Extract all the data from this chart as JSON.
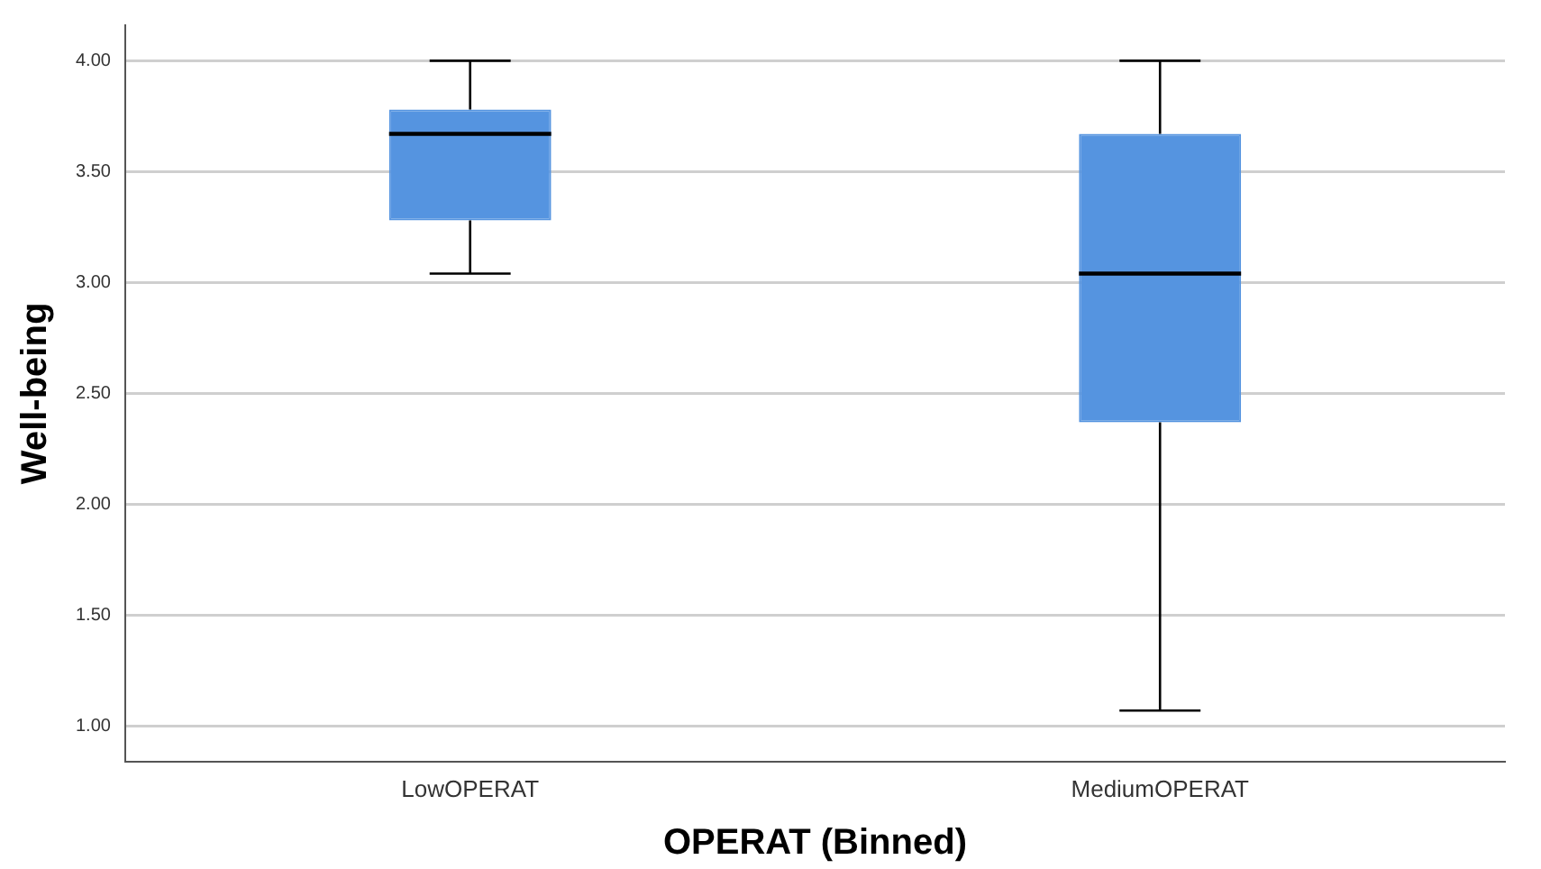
{
  "chart_data": {
    "type": "box",
    "xlabel": "OPERAT (Binned)",
    "ylabel": "Well-being",
    "categories": [
      "LowOPERAT",
      "MediumOPERAT"
    ],
    "color": "#5594e0",
    "boxes": [
      {
        "low": 3.04,
        "q1": 3.28,
        "median": 3.67,
        "q3": 3.78,
        "high": 4.0
      },
      {
        "low": 1.07,
        "q1": 2.37,
        "median": 3.04,
        "q3": 3.67,
        "high": 4.0
      }
    ],
    "ylim": [
      0.84,
      4.16
    ],
    "yticks": [
      {
        "value": 1,
        "label": "1.00"
      },
      {
        "value": 1.5,
        "label": "1.50"
      },
      {
        "value": 2,
        "label": "2.00"
      },
      {
        "value": 2.5,
        "label": "2.50"
      },
      {
        "value": 3,
        "label": "3.00"
      },
      {
        "value": 3.5,
        "label": "3.50"
      },
      {
        "value": 4,
        "label": "4.00"
      }
    ],
    "grid": "y",
    "legend": false
  }
}
